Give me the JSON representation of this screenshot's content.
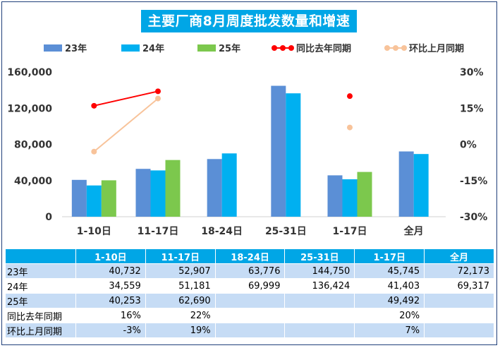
{
  "title": "主要厂商8月周度批发数量和增速",
  "colors": {
    "s23": "#5b8fd6",
    "s24": "#00b0f0",
    "s25": "#7cc84d",
    "yoy": "#ff0000",
    "mom": "#f8c39a",
    "title_bg": "#00a6e6"
  },
  "chart_data": {
    "type": "bar",
    "categories": [
      "1-10日",
      "11-17日",
      "18-24日",
      "25-31日",
      "1-17日",
      "全月"
    ],
    "series": [
      {
        "name": "23年",
        "values": [
          40732,
          52907,
          63776,
          144750,
          45745,
          72173
        ]
      },
      {
        "name": "24年",
        "values": [
          34559,
          51181,
          69999,
          136424,
          41403,
          69317
        ]
      },
      {
        "name": "25年",
        "values": [
          40253,
          62690,
          null,
          null,
          49492,
          null
        ]
      }
    ],
    "line_series": [
      {
        "name": "同比去年同期",
        "values": [
          16,
          22,
          null,
          null,
          20,
          null
        ],
        "axis": "right"
      },
      {
        "name": "环比上月同期",
        "values": [
          -3,
          19,
          null,
          null,
          7,
          null
        ],
        "axis": "right"
      }
    ],
    "ylim": [
      0,
      160000
    ],
    "yticks": [
      "0",
      "40,000",
      "80,000",
      "120,000",
      "160,000"
    ],
    "y2lim": [
      -30,
      30
    ],
    "y2ticks": [
      "-30%",
      "-15%",
      "0%",
      "15%",
      "30%"
    ],
    "legend_position": "top"
  },
  "table": {
    "headers": [
      "",
      "1-10日",
      "11-17日",
      "18-24日",
      "25-31日",
      "1-17日",
      "全月"
    ],
    "rows": [
      {
        "label": "23年",
        "cells": [
          "40,732",
          "52,907",
          "63,776",
          "144,750",
          "45,745",
          "72,173"
        ]
      },
      {
        "label": "24年",
        "cells": [
          "34,559",
          "51,181",
          "69,999",
          "136,424",
          "41,403",
          "69,317"
        ]
      },
      {
        "label": "25年",
        "cells": [
          "40,253",
          "62,690",
          "",
          "",
          "49,492",
          ""
        ]
      },
      {
        "label": "同比去年同期",
        "cells": [
          "16%",
          "22%",
          "",
          "",
          "20%",
          ""
        ]
      },
      {
        "label": "环比上月同期",
        "cells": [
          "-3%",
          "19%",
          "",
          "",
          "7%",
          ""
        ]
      }
    ]
  }
}
